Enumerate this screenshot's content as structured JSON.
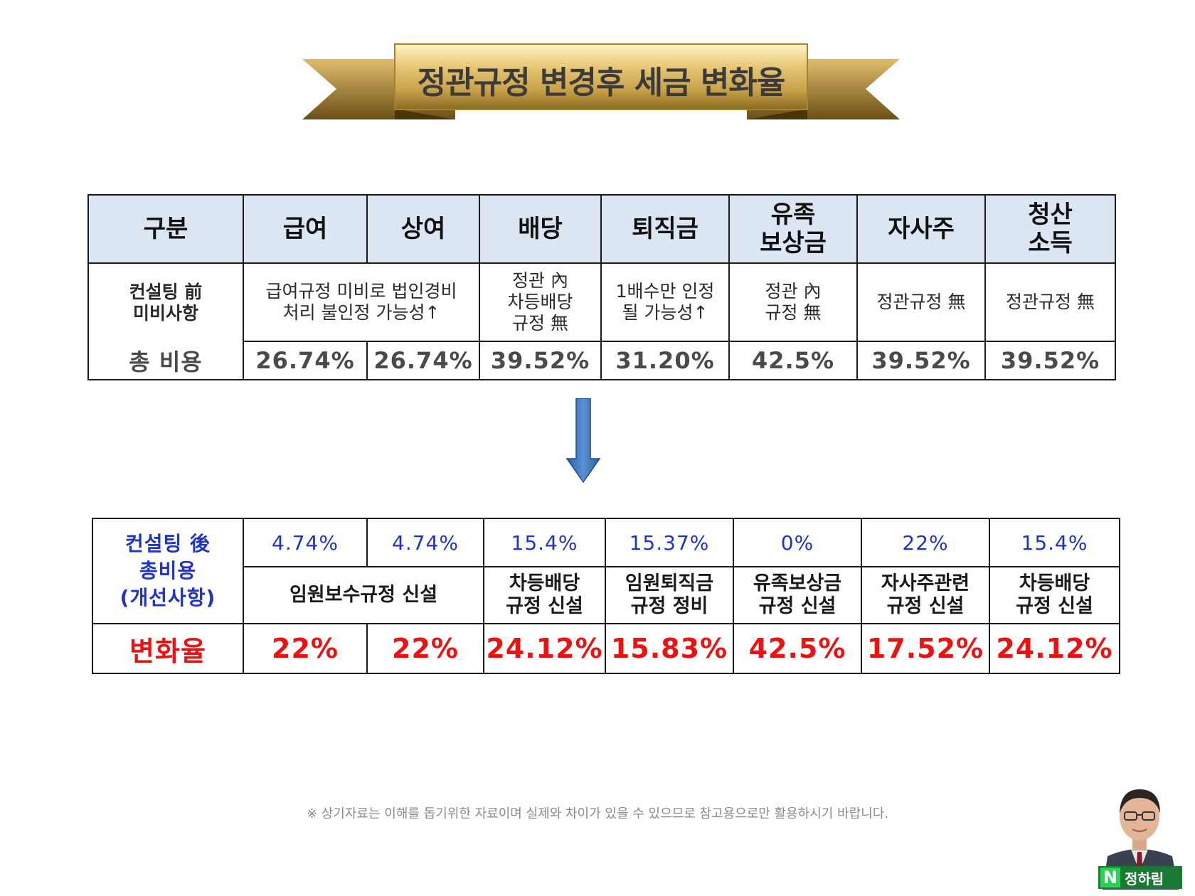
{
  "title": "정관규정 변경후 세금 변화율",
  "before_table": {
    "headers": [
      "구분",
      "급여",
      "상여",
      "배당",
      "퇴직금",
      "유족\n보상금",
      "자사주",
      "청산\n소득"
    ],
    "row_label_1": "컨설팅 前\n미비사항",
    "row_label_2": "총 비용",
    "descriptions": {
      "salary_bonus": "급여규정 미비로 법인경비\n처리 불인정 가능성↑",
      "dividend": "정관 內\n차등배당\n규정 無",
      "retirement": "1배수만 인정\n될 가능성↑",
      "survivor": "정관 內\n규정 無",
      "treasury_stock": "정관규정 無",
      "liquidation": "정관규정 無"
    },
    "total_costs": [
      "26.74%",
      "26.74%",
      "39.52%",
      "31.20%",
      "42.5%",
      "39.52%",
      "39.52%"
    ]
  },
  "after_table": {
    "row_label": "컨설팅 後\n총비용\n(개선사항)",
    "total_costs": [
      "4.74%",
      "4.74%",
      "15.4%",
      "15.37%",
      "0%",
      "22%",
      "15.4%"
    ],
    "improvements": {
      "salary_bonus": "임원보수규정 신설",
      "dividend": "차등배당\n규정 신설",
      "retirement": "임원퇴직금\n규정 정비",
      "survivor": "유족보상금\n규정 신설",
      "treasury_stock": "자사주관련\n규정 신설",
      "liquidation": "차등배당\n규정 신설"
    },
    "change_label": "변화율",
    "change_rates": [
      "22%",
      "22%",
      "24.12%",
      "15.83%",
      "42.5%",
      "17.52%",
      "24.12%"
    ]
  },
  "footnote": "※ 상기자료는 이해를 돕기위한 자료이며 실제와 차이가 있을 수 있으므로 참고용으로만 활용하시기 바랍니다.",
  "badge": {
    "logo_letter": "N",
    "name": "정하림"
  },
  "colors": {
    "header_bg": "#dce6f2",
    "after_pct": "#1f33c9",
    "change_red": "#ee1111",
    "ribbon_gold": "#c9a24a"
  }
}
